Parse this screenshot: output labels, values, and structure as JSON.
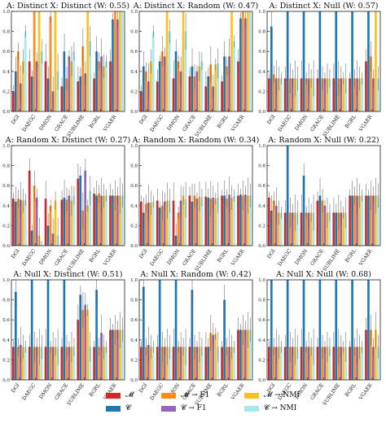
{
  "colors": {
    "M": "#d62728",
    "C": "#1f77b4",
    "M_F1": "#ff8c1a",
    "C_F1": "#9467bd",
    "M_NMI": "#ffbf1f",
    "C_NMI": "#a6e8ee",
    "err": "#555555"
  },
  "legend": [
    {
      "key": "M",
      "label": "𝓜"
    },
    {
      "key": "C",
      "label": "𝓒"
    },
    {
      "key": "M_F1",
      "label": "𝓜 → F1"
    },
    {
      "key": "C_F1",
      "label": "𝓒 → F1"
    },
    {
      "key": "M_NMI",
      "label": "𝓜 → NMI"
    },
    {
      "key": "C_NMI",
      "label": "𝓒 → NMI"
    }
  ],
  "chart_data": [
    {
      "type": "bar",
      "title": "A: Distinct X: Distinct (W: 0.55)",
      "categories": [
        "DGI",
        "DAEGC",
        "DMON",
        "GRACE",
        "SUBLIME",
        "BGRL",
        "VGAER"
      ],
      "ylim": [
        0,
        1
      ],
      "yticks": [
        "0.0",
        "0.2",
        "0.4",
        "0.6",
        "0.8",
        "1.0"
      ],
      "series": [
        {
          "key": "M",
          "values": [
            0.2,
            0.5,
            0.5,
            0.25,
            0.3,
            0.33,
            0.5
          ]
        },
        {
          "key": "C",
          "values": [
            0.4,
            0.35,
            0.33,
            0.6,
            0.35,
            0.6,
            0.92
          ]
        },
        {
          "key": "M_F1",
          "values": [
            0.6,
            1.0,
            0.95,
            0.33,
            0.65,
            0.5,
            1.0
          ]
        },
        {
          "key": "C_F1",
          "values": [
            0.28,
            0.5,
            0.2,
            0.55,
            0.38,
            0.55,
            0.92
          ]
        },
        {
          "key": "M_NMI",
          "values": [
            0.5,
            1.0,
            1.0,
            0.5,
            1.0,
            0.45,
            1.0
          ]
        },
        {
          "key": "C_NMI",
          "values": [
            0.8,
            0.6,
            0.4,
            0.6,
            0.7,
            0.5,
            1.0
          ]
        }
      ]
    },
    {
      "type": "bar",
      "title": "A: Distinct X: Random (W: 0.47)",
      "categories": [
        "DGI",
        "DAEGC",
        "DMON",
        "GRACE",
        "SUBLIME",
        "BGRL",
        "VGAER"
      ],
      "ylim": [
        0,
        1
      ],
      "yticks": [
        "0.0",
        "0.2",
        "0.4",
        "0.6",
        "0.8",
        "1.0"
      ],
      "series": [
        {
          "key": "M",
          "values": [
            0.2,
            0.3,
            0.33,
            0.35,
            0.25,
            0.3,
            0.5
          ]
        },
        {
          "key": "C",
          "values": [
            0.45,
            0.5,
            0.6,
            0.45,
            0.35,
            0.55,
            0.93
          ]
        },
        {
          "key": "M_F1",
          "values": [
            0.4,
            0.6,
            0.5,
            0.35,
            0.47,
            0.45,
            1.0
          ]
        },
        {
          "key": "C_F1",
          "values": [
            0.3,
            0.55,
            0.4,
            0.4,
            0.25,
            0.55,
            0.93
          ]
        },
        {
          "key": "M_NMI",
          "values": [
            0.5,
            1.0,
            1.0,
            0.45,
            0.47,
            1.0,
            1.0
          ]
        },
        {
          "key": "C_NMI",
          "values": [
            0.8,
            0.8,
            0.8,
            0.5,
            0.48,
            0.7,
            1.0
          ]
        }
      ]
    },
    {
      "type": "bar",
      "title": "A: Distinct X: Null (W: 0.57)",
      "categories": [
        "DGI",
        "DAEGC",
        "DMON",
        "GRACE",
        "SUBLIME",
        "BGRL",
        "VGAER"
      ],
      "ylim": [
        0,
        1
      ],
      "yticks": [
        "0.0",
        "0.2",
        "0.4",
        "0.6",
        "0.8",
        "1.0"
      ],
      "series": [
        {
          "key": "M",
          "values": [
            0.33,
            0.33,
            0.33,
            0.33,
            0.33,
            0.33,
            0.5
          ]
        },
        {
          "key": "C",
          "values": [
            0.85,
            1.0,
            1.0,
            1.0,
            1.0,
            1.0,
            1.0
          ]
        },
        {
          "key": "M_F1",
          "values": [
            0.37,
            0.33,
            0.33,
            0.33,
            0.33,
            0.33,
            0.55
          ]
        },
        {
          "key": "C_F1",
          "values": [
            0.33,
            0.33,
            0.33,
            0.33,
            0.33,
            0.33,
            0.33
          ]
        },
        {
          "key": "M_NMI",
          "values": [
            0.33,
            0.33,
            0.33,
            0.33,
            0.33,
            0.33,
            1.0
          ]
        },
        {
          "key": "C_NMI",
          "values": [
            0.33,
            0.33,
            0.33,
            0.33,
            0.33,
            0.33,
            0.33
          ]
        }
      ]
    },
    {
      "type": "bar",
      "title": "A: Random X: Distinct (W: 0.27)",
      "categories": [
        "DGI",
        "DAEGC",
        "DMON",
        "GRACE",
        "SUBLIME",
        "BGRL",
        "VGAER"
      ],
      "ylim": [
        0,
        1
      ],
      "yticks": [
        "0.0",
        "0.2",
        "0.4",
        "0.6",
        "0.8",
        "1.0"
      ],
      "series": [
        {
          "key": "M",
          "values": [
            0.47,
            0.75,
            0.47,
            0.46,
            0.67,
            0.52,
            0.5
          ]
        },
        {
          "key": "C",
          "values": [
            0.44,
            0.15,
            0.2,
            0.48,
            0.7,
            0.5,
            0.5
          ]
        },
        {
          "key": "M_F1",
          "values": [
            0.47,
            0.6,
            0.4,
            0.46,
            0.35,
            0.52,
            0.5
          ]
        },
        {
          "key": "C_F1",
          "values": [
            0.46,
            0.48,
            0.12,
            0.5,
            0.75,
            0.5,
            0.5
          ]
        },
        {
          "key": "M_NMI",
          "values": [
            0.45,
            0.1,
            0.45,
            0.45,
            0.4,
            0.5,
            0.5
          ]
        },
        {
          "key": "C_NMI",
          "values": [
            0.46,
            0.05,
            0.1,
            0.5,
            0.55,
            0.5,
            0.5
          ]
        }
      ]
    },
    {
      "type": "bar",
      "title": "A: Random X: Random (W: 0.34)",
      "categories": [
        "DGI",
        "DAEGC",
        "DMON",
        "GRACE",
        "SUBLIME",
        "BGRL",
        "VGAER"
      ],
      "ylim": [
        0,
        1
      ],
      "yticks": [
        "0.0",
        "0.2",
        "0.4",
        "0.6",
        "0.8",
        "1.0"
      ],
      "series": [
        {
          "key": "M",
          "values": [
            0.44,
            0.45,
            0.45,
            0.5,
            0.49,
            0.5,
            0.5
          ]
        },
        {
          "key": "C",
          "values": [
            0.33,
            0.38,
            0.1,
            0.44,
            0.48,
            0.5,
            0.51
          ]
        },
        {
          "key": "M_F1",
          "values": [
            0.42,
            0.4,
            0.33,
            0.5,
            0.47,
            0.47,
            0.5
          ]
        },
        {
          "key": "C_F1",
          "values": [
            0.43,
            0.44,
            0.45,
            0.47,
            0.48,
            0.51,
            0.51
          ]
        },
        {
          "key": "M_NMI",
          "values": [
            0.43,
            0.45,
            0.5,
            0.49,
            0.47,
            0.48,
            0.5
          ]
        },
        {
          "key": "C_NMI",
          "values": [
            0.44,
            0.45,
            0.46,
            0.48,
            0.48,
            0.5,
            0.5
          ]
        }
      ]
    },
    {
      "type": "bar",
      "title": "A: Random X: Null (W: 0.22)",
      "categories": [
        "DGI",
        "DAEGC",
        "DMON",
        "GRACE",
        "SUBLIME",
        "BGRL",
        "VGAER"
      ],
      "ylim": [
        0,
        1
      ],
      "yticks": [
        "0.0",
        "0.2",
        "0.4",
        "0.6",
        "0.8",
        "1.0"
      ],
      "series": [
        {
          "key": "M",
          "values": [
            0.48,
            0.33,
            0.33,
            0.45,
            0.33,
            0.5,
            0.5
          ]
        },
        {
          "key": "C",
          "values": [
            0.35,
            1.0,
            0.7,
            0.5,
            0.33,
            0.5,
            0.5
          ]
        },
        {
          "key": "M_F1",
          "values": [
            0.45,
            0.33,
            0.33,
            0.45,
            0.33,
            0.5,
            0.5
          ]
        },
        {
          "key": "C_F1",
          "values": [
            0.4,
            0.33,
            0.33,
            0.4,
            0.33,
            0.5,
            0.5
          ]
        },
        {
          "key": "M_NMI",
          "values": [
            0.33,
            0.33,
            0.33,
            0.33,
            0.33,
            0.5,
            0.5
          ]
        },
        {
          "key": "C_NMI",
          "values": [
            0.33,
            0.33,
            0.33,
            0.33,
            0.33,
            0.5,
            0.5
          ]
        }
      ]
    },
    {
      "type": "bar",
      "title": "A: Null X: Distinct (W: 0.51)",
      "categories": [
        "DGI",
        "DAEGC",
        "DMON",
        "GRACE",
        "SUBLIME",
        "BGRL",
        "VGAER"
      ],
      "ylim": [
        0,
        1
      ],
      "yticks": [
        "0.0",
        "0.2",
        "0.4",
        "0.6",
        "0.8",
        "1.0"
      ],
      "series": [
        {
          "key": "M",
          "values": [
            0.33,
            0.33,
            0.33,
            0.33,
            0.6,
            0.33,
            0.5
          ]
        },
        {
          "key": "C",
          "values": [
            0.88,
            1.0,
            1.0,
            1.0,
            0.85,
            0.9,
            0.5
          ]
        },
        {
          "key": "M_F1",
          "values": [
            0.33,
            0.33,
            0.33,
            0.33,
            0.7,
            0.33,
            0.5
          ]
        },
        {
          "key": "C_F1",
          "values": [
            0.35,
            0.33,
            0.33,
            0.33,
            0.75,
            0.47,
            0.5
          ]
        },
        {
          "key": "M_NMI",
          "values": [
            0.33,
            0.33,
            0.33,
            0.33,
            0.7,
            0.33,
            0.5
          ]
        },
        {
          "key": "C_NMI",
          "values": [
            0.33,
            0.33,
            0.33,
            0.33,
            0.33,
            0.33,
            0.5
          ]
        }
      ]
    },
    {
      "type": "bar",
      "title": "A: Null X: Random (W: 0.42)",
      "categories": [
        "DGI",
        "DAEGC",
        "DMON",
        "GRACE",
        "SUBLIME",
        "BGRL",
        "VGAER"
      ],
      "ylim": [
        0,
        1
      ],
      "yticks": [
        "0.0",
        "0.2",
        "0.4",
        "0.6",
        "0.8",
        "1.0"
      ],
      "series": [
        {
          "key": "M",
          "values": [
            0.33,
            0.33,
            0.33,
            0.33,
            0.33,
            0.33,
            0.5
          ]
        },
        {
          "key": "C",
          "values": [
            0.93,
            1.0,
            1.0,
            0.9,
            0.33,
            0.8,
            0.5
          ]
        },
        {
          "key": "M_F1",
          "values": [
            0.33,
            0.33,
            0.33,
            0.33,
            0.47,
            0.33,
            0.5
          ]
        },
        {
          "key": "C_F1",
          "values": [
            0.35,
            0.33,
            0.33,
            0.33,
            0.45,
            0.33,
            0.5
          ]
        },
        {
          "key": "M_NMI",
          "values": [
            0.33,
            0.33,
            0.33,
            0.33,
            0.46,
            0.33,
            0.5
          ]
        },
        {
          "key": "C_NMI",
          "values": [
            0.33,
            0.33,
            0.33,
            0.33,
            0.33,
            0.33,
            0.5
          ]
        }
      ]
    },
    {
      "type": "bar",
      "title": "A: Null X: Null (W: 0.68)",
      "categories": [
        "DGI",
        "DAEGC",
        "DMON",
        "GRACE",
        "SUBLIME",
        "BGRL",
        "VGAER"
      ],
      "ylim": [
        0,
        1
      ],
      "yticks": [
        "0.0",
        "0.2",
        "0.4",
        "0.6",
        "0.8",
        "1.0"
      ],
      "series": [
        {
          "key": "M",
          "values": [
            0.33,
            0.33,
            0.33,
            0.33,
            0.33,
            0.33,
            0.5
          ]
        },
        {
          "key": "C",
          "values": [
            1.0,
            1.0,
            1.0,
            1.0,
            1.0,
            1.0,
            1.0
          ]
        },
        {
          "key": "M_F1",
          "values": [
            0.33,
            0.33,
            0.33,
            0.33,
            0.33,
            0.33,
            0.5
          ]
        },
        {
          "key": "C_F1",
          "values": [
            0.33,
            0.33,
            0.33,
            0.33,
            0.33,
            0.33,
            0.33
          ]
        },
        {
          "key": "M_NMI",
          "values": [
            0.33,
            0.33,
            0.33,
            0.33,
            0.33,
            0.33,
            0.5
          ]
        },
        {
          "key": "C_NMI",
          "values": [
            0.33,
            0.33,
            0.33,
            0.33,
            0.33,
            0.33,
            0.33
          ]
        }
      ]
    }
  ]
}
